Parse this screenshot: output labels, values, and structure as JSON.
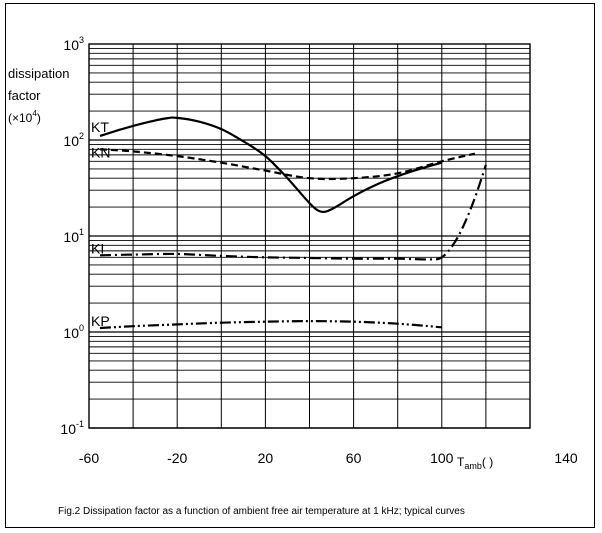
{
  "chart_data": {
    "type": "line",
    "title": "",
    "ylabel_lines": [
      "dissipation",
      "factor",
      "(×10",
      "4",
      ")"
    ],
    "xlabel": {
      "main": "T",
      "sub": "amb",
      "suffix": "(    )"
    },
    "x_ticks": [
      -60,
      -20,
      20,
      60,
      100,
      140
    ],
    "x_tick_labels": [
      "-60",
      "-20",
      "20",
      "60",
      "100",
      "140"
    ],
    "xlim": [
      -60,
      140
    ],
    "ylim": [
      0.1,
      1000
    ],
    "yscale": "log",
    "y_tick_labels": [
      {
        "base": "10",
        "exp": "-1",
        "value": 0.1
      },
      {
        "base": "10",
        "exp": "0",
        "value": 1
      },
      {
        "base": "10",
        "exp": "1",
        "value": 10
      },
      {
        "base": "10",
        "exp": "2",
        "value": 100
      },
      {
        "base": "10",
        "exp": "3",
        "value": 1000
      }
    ],
    "grid": true,
    "series": [
      {
        "name": "KT",
        "line_style": "solid",
        "x": [
          -55,
          -45,
          -35,
          -25,
          -20,
          -10,
          0,
          10,
          20,
          30,
          40,
          45,
          50,
          60,
          70,
          80,
          90,
          100
        ],
        "y": [
          110,
          130,
          150,
          168,
          170,
          155,
          130,
          97,
          68,
          40,
          22,
          18,
          19,
          26,
          34,
          42,
          50,
          58
        ]
      },
      {
        "name": "KN",
        "line_style": "dashed",
        "x": [
          -55,
          -40,
          -20,
          0,
          20,
          40,
          60,
          80,
          100,
          115
        ],
        "y": [
          80,
          76,
          68,
          58,
          48,
          40,
          40,
          45,
          60,
          72
        ]
      },
      {
        "name": "KI",
        "line_style": "dash-dot",
        "x": [
          -55,
          -40,
          -20,
          0,
          20,
          40,
          60,
          80,
          95,
          100,
          105,
          110,
          115,
          120
        ],
        "y": [
          6.3,
          6.4,
          6.5,
          6.2,
          6.0,
          5.9,
          5.8,
          5.8,
          5.7,
          6.0,
          8.0,
          13,
          25,
          55
        ]
      },
      {
        "name": "KP",
        "line_style": "dash-dot-dot",
        "x": [
          -55,
          -40,
          -20,
          0,
          20,
          40,
          60,
          80,
          100
        ],
        "y": [
          1.1,
          1.15,
          1.2,
          1.25,
          1.28,
          1.3,
          1.28,
          1.22,
          1.12
        ]
      }
    ],
    "curve_labels": [
      "KT",
      "KN",
      "KI",
      "KP"
    ],
    "caption": "Fig.2 Dissipation factor as a function of ambient free air temperature at 1 kHz; typical curves"
  }
}
